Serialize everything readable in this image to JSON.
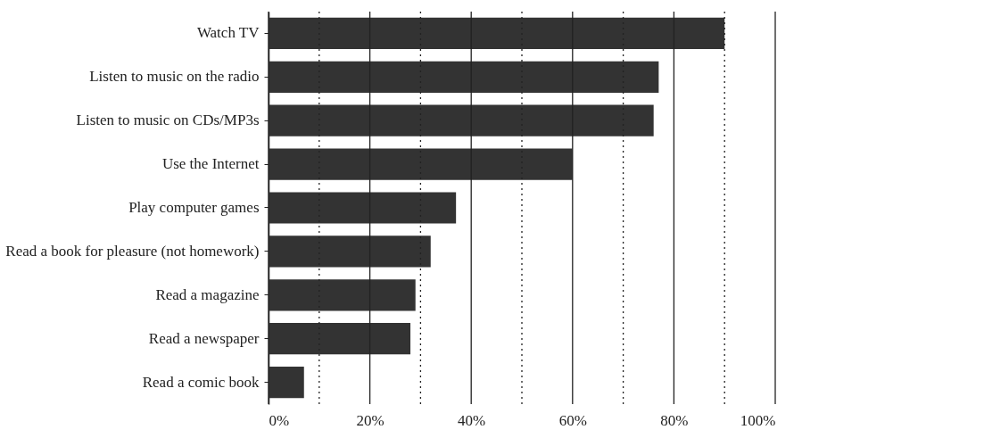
{
  "chart_data": {
    "type": "bar",
    "orientation": "horizontal",
    "categories": [
      "Watch TV",
      "Listen to music on the radio",
      "Listen to music on CDs/MP3s",
      "Use the Internet",
      "Play computer games",
      "Read a book for pleasure (not homework)",
      "Read a magazine",
      "Read a newspaper",
      "Read a comic book"
    ],
    "values": [
      90,
      77,
      76,
      60,
      37,
      32,
      29,
      28,
      7
    ],
    "color": "#333333",
    "xlim": [
      0,
      100
    ],
    "xticks": [
      {
        "value": 0,
        "label": "0%"
      },
      {
        "value": 10,
        "label": null
      },
      {
        "value": 20,
        "label": "20%"
      },
      {
        "value": 30,
        "label": null
      },
      {
        "value": 40,
        "label": "40%"
      },
      {
        "value": 50,
        "label": null
      },
      {
        "value": 60,
        "label": "60%"
      },
      {
        "value": 70,
        "label": null
      },
      {
        "value": 80,
        "label": "80%"
      },
      {
        "value": 90,
        "label": null
      },
      {
        "value": 100,
        "label": "100%"
      }
    ],
    "grid": "x"
  }
}
